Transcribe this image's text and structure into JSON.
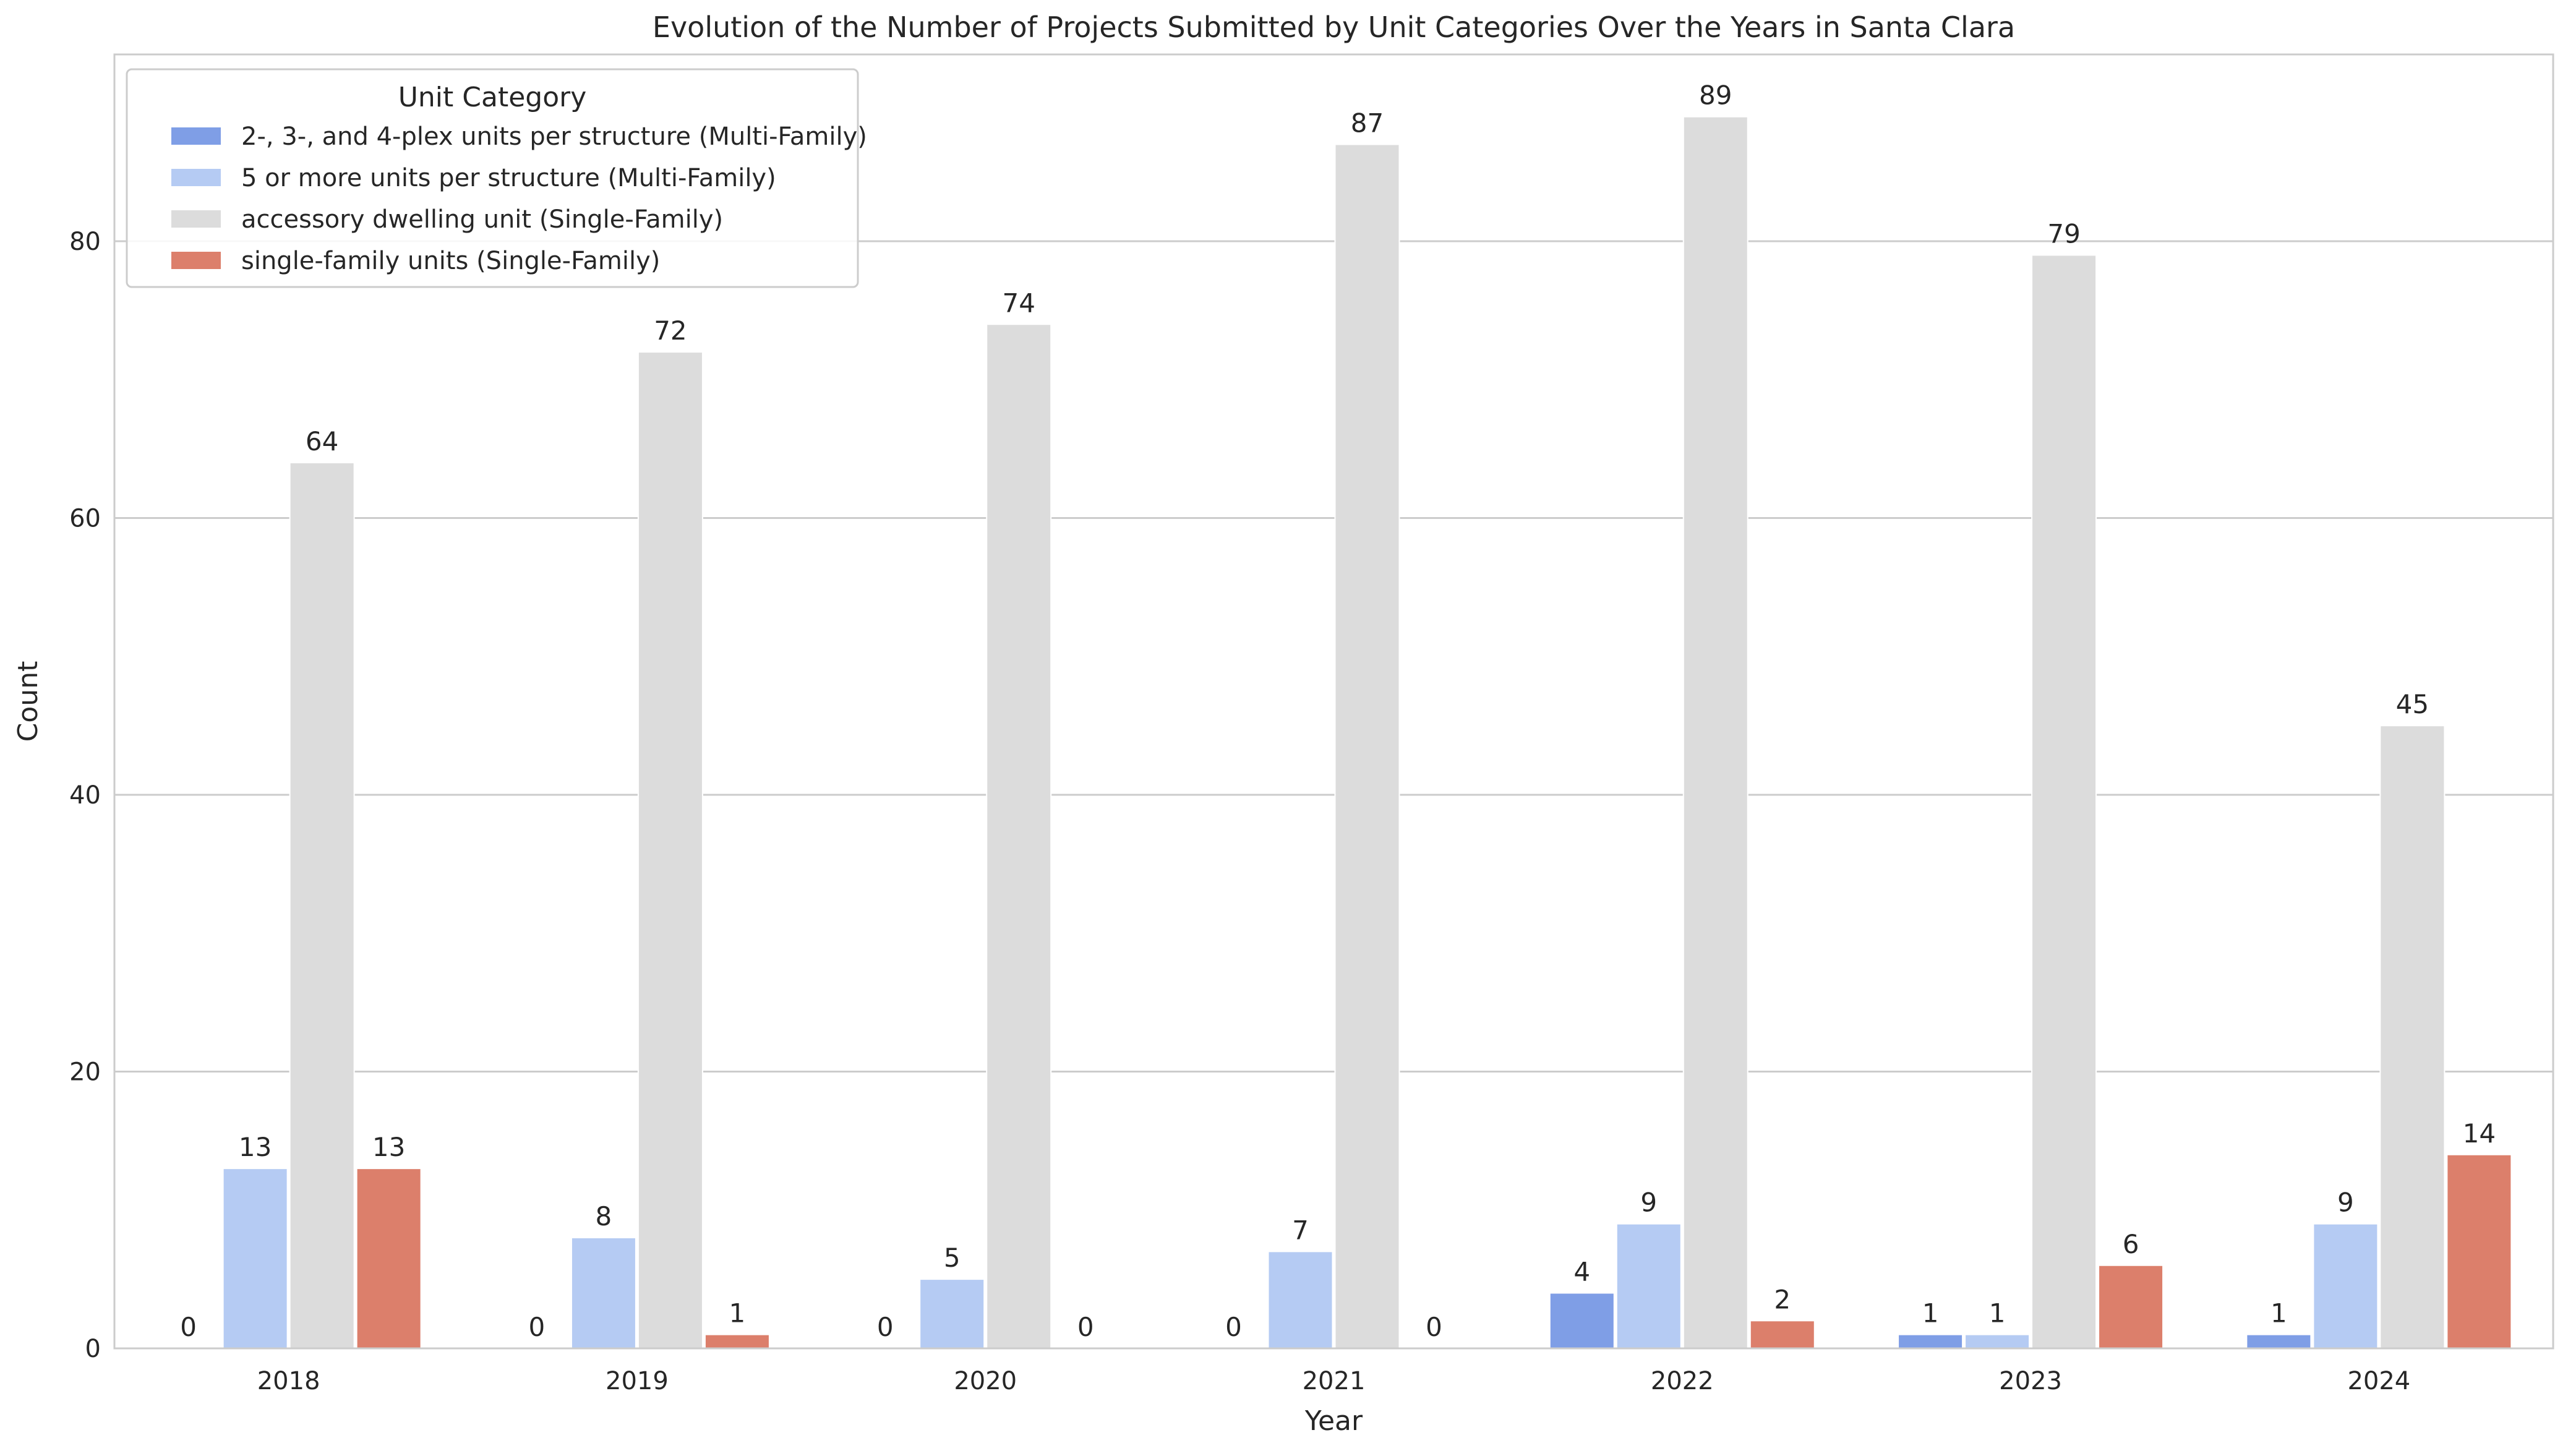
{
  "chart_data": {
    "type": "bar",
    "title": "Evolution of the Number of Projects Submitted by Unit Categories Over the Years in Santa Clara",
    "xlabel": "Year",
    "ylabel": "Count",
    "categories": [
      "2018",
      "2019",
      "2020",
      "2021",
      "2022",
      "2023",
      "2024"
    ],
    "ylim": [
      0,
      93.5
    ],
    "yticks": [
      "0",
      "20",
      "40",
      "60",
      "80"
    ],
    "grid": true,
    "legend": {
      "title": "Unit Category",
      "placement": "top-left"
    },
    "series": [
      {
        "name": "2-, 3-, and 4-plex units per structure (Multi-Family)",
        "color": "#7f9ee6",
        "values": [
          0,
          0,
          0,
          0,
          4,
          1,
          1
        ],
        "labels": [
          "0",
          "0",
          "0",
          "0",
          "4",
          "1",
          "1"
        ]
      },
      {
        "name": "5 or more units per structure (Multi-Family)",
        "color": "#b5cbf3",
        "values": [
          13,
          8,
          5,
          7,
          9,
          1,
          9
        ],
        "labels": [
          "13",
          "8",
          "5",
          "7",
          "9",
          "1",
          "9"
        ]
      },
      {
        "name": "accessory dwelling unit (Single-Family)",
        "color": "#dcdcdc",
        "values": [
          64,
          72,
          74,
          87,
          89,
          79,
          45
        ],
        "labels": [
          "64",
          "72",
          "74",
          "87",
          "89",
          "79",
          "45"
        ]
      },
      {
        "name": "single-family units (Single-Family)",
        "color": "#dc7f6b",
        "values": [
          13,
          1,
          0,
          0,
          2,
          6,
          14
        ],
        "labels": [
          "13",
          "1",
          "0",
          "0",
          "2",
          "6",
          "14"
        ]
      }
    ]
  }
}
